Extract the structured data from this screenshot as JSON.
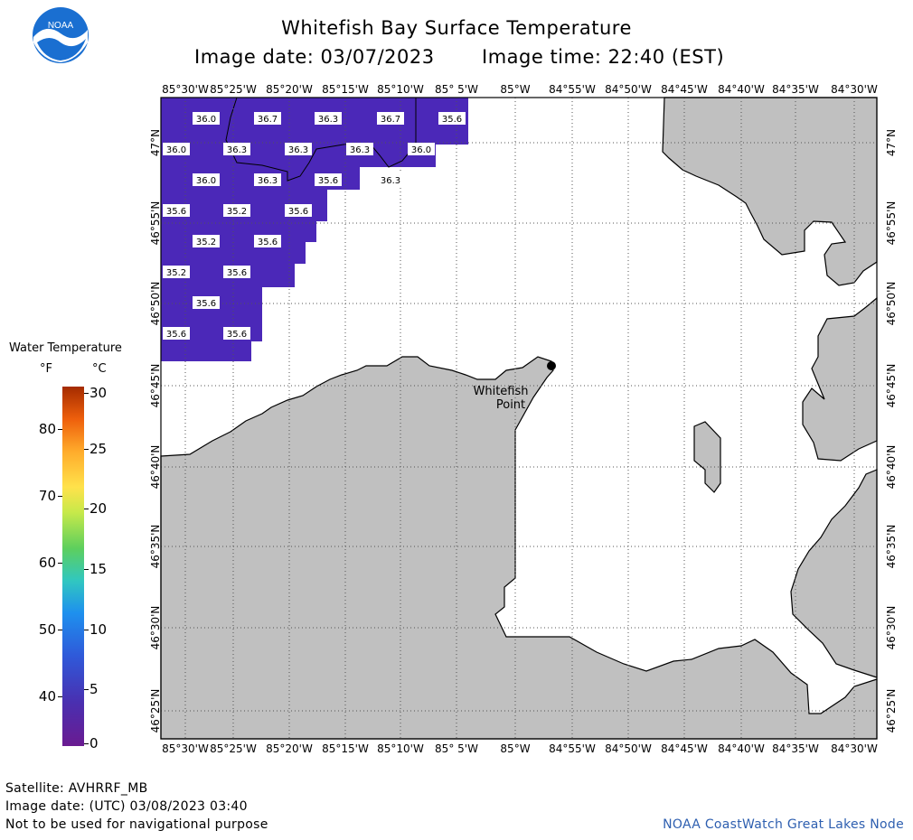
{
  "header": {
    "title": "Whitefish Bay Surface Temperature",
    "image_date": "Image date: 03/07/2023",
    "image_time": "Image time: 22:40 (EST)",
    "logo_text": "NOAA"
  },
  "map": {
    "lon_labels": [
      "85°30'W",
      "85°25'W",
      "85°20'W",
      "85°15'W",
      "85°10'W",
      "85° 5'W",
      "85°W",
      "84°55'W",
      "84°50'W",
      "84°45'W",
      "84°40'W",
      "84°35'W",
      "84°30'W"
    ],
    "lat_labels": [
      "47°N",
      "46°55'N",
      "46°50'N",
      "46°45'N",
      "46°40'N",
      "46°35'N",
      "46°30'N",
      "46°25'N"
    ],
    "place_label_line1": "Whitefish",
    "place_label_line2": "Point",
    "temperatures": [
      {
        "v": "36.0",
        "r": 0,
        "c": 0
      },
      {
        "v": "36.7",
        "r": 0,
        "c": 1
      },
      {
        "v": "36.3",
        "r": 0,
        "c": 2
      },
      {
        "v": "36.7",
        "r": 0,
        "c": 3
      },
      {
        "v": "35.6",
        "r": 0,
        "c": 4
      },
      {
        "v": "36.0",
        "r": 1,
        "c": 0
      },
      {
        "v": "36.3",
        "r": 1,
        "c": 1
      },
      {
        "v": "36.3",
        "r": 1,
        "c": 2
      },
      {
        "v": "36.3",
        "r": 1,
        "c": 3
      },
      {
        "v": "36.0",
        "r": 1,
        "c": 4
      },
      {
        "v": "36.0",
        "r": 2,
        "c": 0
      },
      {
        "v": "36.3",
        "r": 2,
        "c": 1
      },
      {
        "v": "35.6",
        "r": 2,
        "c": 2
      },
      {
        "v": "36.3",
        "r": 2,
        "c": 3
      },
      {
        "v": "35.6",
        "r": 3,
        "c": 0
      },
      {
        "v": "35.2",
        "r": 3,
        "c": 1
      },
      {
        "v": "35.6",
        "r": 3,
        "c": 2
      },
      {
        "v": "35.2",
        "r": 4,
        "c": 0
      },
      {
        "v": "35.6",
        "r": 4,
        "c": 1
      },
      {
        "v": "35.2",
        "r": 5,
        "c": 0
      },
      {
        "v": "35.6",
        "r": 5,
        "c": 1
      },
      {
        "v": "35.6",
        "r": 6,
        "c": 0
      },
      {
        "v": "35.6",
        "r": 7,
        "c": 0
      },
      {
        "v": "35.6",
        "r": 7,
        "c": 1
      }
    ],
    "colors": {
      "water_temp": "#4b28b8",
      "land": "#c0c0c0",
      "grid": "#555555"
    }
  },
  "legend": {
    "title": "Water Temperature",
    "unit_f": "°F",
    "unit_c": "°C",
    "f_ticks": [
      "80",
      "70",
      "60",
      "50",
      "40"
    ],
    "c_ticks": [
      "30",
      "25",
      "20",
      "15",
      "10",
      "5",
      "0"
    ]
  },
  "footer": {
    "satellite": "Satellite: AVHRRF_MB",
    "utc_date": "Image date: (UTC) 03/08/2023  03:40",
    "disclaimer": "Not to be used for navigational purpose",
    "credit": "NOAA CoastWatch Great Lakes Node"
  }
}
